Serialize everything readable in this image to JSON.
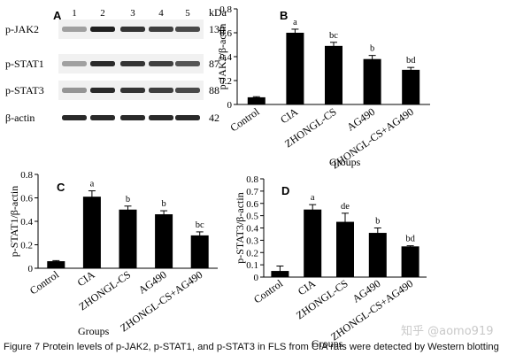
{
  "caption": "Figure 7 Protein levels of p-JAK2, p-STAT1, and p-STAT3 in FLS from CIA rats were detected by Western blotting",
  "watermark": "知乎 @aomo919",
  "blot": {
    "panel_letter": "A",
    "kda_header": "kDa",
    "lanes": [
      "1",
      "2",
      "3",
      "4",
      "5"
    ],
    "rows": [
      {
        "label": "p-JAK2",
        "kda": "130",
        "intensities": [
          0.35,
          0.95,
          0.85,
          0.8,
          0.75
        ]
      },
      {
        "label": "p-STAT1",
        "kda": "87",
        "intensities": [
          0.35,
          0.9,
          0.85,
          0.8,
          0.7
        ]
      },
      {
        "label": "p-STAT3",
        "kda": "88",
        "intensities": [
          0.4,
          0.9,
          0.85,
          0.8,
          0.75
        ]
      },
      {
        "label": "β-actin",
        "kda": "42",
        "intensities": [
          0.9,
          0.9,
          0.9,
          0.9,
          0.9
        ]
      }
    ]
  },
  "chart_data": [
    {
      "panel": "B",
      "type": "bar",
      "ylabel": "p-JAK2/β-actin",
      "xlabel": "Groups",
      "categories": [
        "Control",
        "CIA",
        "ZHONGL-CS",
        "AG490",
        "ZHONGL-CS+AG490"
      ],
      "values": [
        0.06,
        0.6,
        0.49,
        0.38,
        0.29
      ],
      "errors": [
        0.005,
        0.03,
        0.03,
        0.03,
        0.02
      ],
      "letters": [
        "",
        "a",
        "bc",
        "b",
        "bd"
      ],
      "ylim": [
        0,
        0.8
      ],
      "yticks": [
        "0",
        "0.2",
        "0.4",
        "0.6",
        "0.8"
      ],
      "yticks_values": [
        0,
        0.2,
        0.4,
        0.6,
        0.8
      ]
    },
    {
      "panel": "C",
      "type": "bar",
      "ylabel": "p-STAT1/β-actin",
      "xlabel": "Groups",
      "categories": [
        "Control",
        "CIA",
        "ZHONGL-CS",
        "AG490",
        "ZHONGL-CS+AG490"
      ],
      "values": [
        0.06,
        0.61,
        0.5,
        0.46,
        0.28
      ],
      "errors": [
        0.005,
        0.05,
        0.03,
        0.03,
        0.03
      ],
      "letters": [
        "",
        "a",
        "b",
        "b",
        "bc"
      ],
      "ylim": [
        0,
        0.8
      ],
      "yticks": [
        "0",
        "0.2",
        "0.4",
        "0.6",
        "0.8"
      ],
      "yticks_values": [
        0,
        0.2,
        0.4,
        0.6,
        0.8
      ]
    },
    {
      "panel": "D",
      "type": "bar",
      "ylabel": "p-STAT3/β-actin",
      "xlabel": "Groups",
      "categories": [
        "Control",
        "CIA",
        "ZHONGL-CS",
        "AG490",
        "ZHONGL-CS+AG490"
      ],
      "values": [
        0.05,
        0.55,
        0.45,
        0.36,
        0.25
      ],
      "errors": [
        0.04,
        0.04,
        0.07,
        0.04,
        0.005
      ],
      "letters": [
        "",
        "a",
        "de",
        "b",
        "bd"
      ],
      "ylim": [
        0,
        0.8
      ],
      "yticks": [
        "0",
        "0.1",
        "0.2",
        "0.3",
        "0.4",
        "0.5",
        "0.6",
        "0.7",
        "0.8"
      ],
      "yticks_values": [
        0,
        0.1,
        0.2,
        0.3,
        0.4,
        0.5,
        0.6,
        0.7,
        0.8
      ]
    }
  ]
}
